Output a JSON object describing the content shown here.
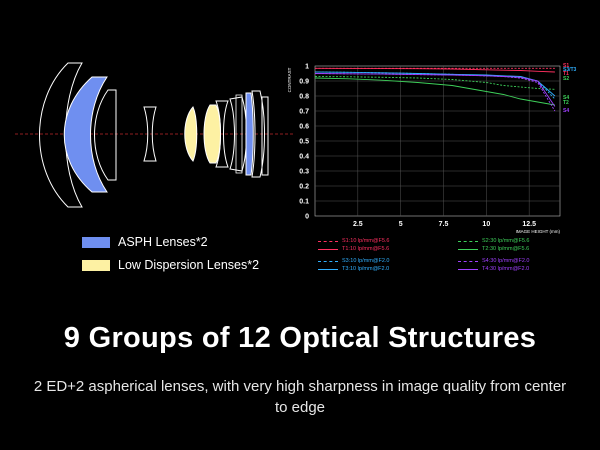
{
  "legend": {
    "asph": {
      "label": "ASPH Lenses*2",
      "color": "#6f8ff0"
    },
    "low_dispersion": {
      "label": "Low Dispersion Lenses*2",
      "color": "#fdf1a3"
    }
  },
  "headline": "9 Groups of 12 Optical Structures",
  "subline": "2 ED+2 aspherical lenses, with very high sharpness in image quality from center to edge",
  "chart_data": {
    "type": "line",
    "ylabel": "CONTRAST",
    "xlabel": "IMAGE HEIGHT  (mm)",
    "xlim": [
      0,
      14.3
    ],
    "ylim": [
      0,
      1
    ],
    "x_ticks": [
      "2.5",
      "5",
      "7.5",
      "10",
      "12.5"
    ],
    "y_ticks": [
      "0",
      "0.1",
      "0.2",
      "0.3",
      "0.4",
      "0.5",
      "0.6",
      "0.7",
      "0.8",
      "0.9",
      "1"
    ],
    "grid": true,
    "x": [
      0,
      2,
      4,
      6,
      8,
      10,
      11,
      12,
      13,
      14
    ],
    "series": [
      {
        "name": "S1",
        "color": "#ff3060",
        "dashed": true,
        "values": [
          0.985,
          0.985,
          0.985,
          0.985,
          0.985,
          0.985,
          0.985,
          0.985,
          0.985,
          0.985
        ]
      },
      {
        "name": "T1",
        "color": "#ff3060",
        "dashed": false,
        "values": [
          0.985,
          0.984,
          0.983,
          0.982,
          0.98,
          0.975,
          0.972,
          0.97,
          0.965,
          0.96
        ]
      },
      {
        "name": "S2",
        "color": "#3ed05a",
        "dashed": true,
        "values": [
          0.93,
          0.928,
          0.925,
          0.92,
          0.91,
          0.89,
          0.87,
          0.86,
          0.85,
          0.845
        ]
      },
      {
        "name": "T2",
        "color": "#3ed05a",
        "dashed": false,
        "values": [
          0.92,
          0.915,
          0.905,
          0.89,
          0.87,
          0.83,
          0.81,
          0.78,
          0.76,
          0.74
        ]
      },
      {
        "name": "S3",
        "color": "#30b0ff",
        "dashed": true,
        "values": [
          0.96,
          0.958,
          0.955,
          0.95,
          0.945,
          0.935,
          0.93,
          0.92,
          0.9,
          0.78
        ]
      },
      {
        "name": "T3",
        "color": "#30b0ff",
        "dashed": false,
        "values": [
          0.96,
          0.958,
          0.955,
          0.95,
          0.945,
          0.94,
          0.935,
          0.93,
          0.9,
          0.8
        ]
      },
      {
        "name": "S4",
        "color": "#a040ff",
        "dashed": true,
        "values": [
          0.95,
          0.948,
          0.946,
          0.943,
          0.94,
          0.935,
          0.93,
          0.92,
          0.89,
          0.7
        ]
      },
      {
        "name": "T4",
        "color": "#a040ff",
        "dashed": false,
        "values": [
          0.95,
          0.948,
          0.946,
          0.943,
          0.94,
          0.935,
          0.93,
          0.925,
          0.9,
          0.73
        ]
      }
    ],
    "end_labels": [
      {
        "text": "S1",
        "color": "#ff3060"
      },
      {
        "text": "S3/T3",
        "color": "#30b0ff"
      },
      {
        "text": "T1",
        "color": "#ff3060"
      },
      {
        "text": "S2",
        "color": "#3ed05a"
      },
      {
        "text": "S4",
        "color": "#3ed05a"
      },
      {
        "text": "T2",
        "color": "#3ed05a"
      },
      {
        "text": "S4",
        "color": "#a040ff"
      }
    ],
    "legend_entries": [
      {
        "label": "S1:10 lp/mm@F5.6",
        "color": "#ff3060",
        "dashed": true
      },
      {
        "label": "T1:10 lp/mm@F5.6",
        "color": "#ff3060",
        "dashed": false
      },
      {
        "label": "S2:30 lp/mm@F5.6",
        "color": "#3ed05a",
        "dashed": true
      },
      {
        "label": "T2:30 lp/mm@F5.6",
        "color": "#3ed05a",
        "dashed": false
      },
      {
        "label": "S3:10 lp/mm@F2.0",
        "color": "#30b0ff",
        "dashed": true
      },
      {
        "label": "T3:10 lp/mm@F2.0",
        "color": "#30b0ff",
        "dashed": false
      },
      {
        "label": "S4:30 lp/mm@F2.0",
        "color": "#a040ff",
        "dashed": true
      },
      {
        "label": "T4:30 lp/mm@F2.0",
        "color": "#a040ff",
        "dashed": false
      }
    ]
  }
}
